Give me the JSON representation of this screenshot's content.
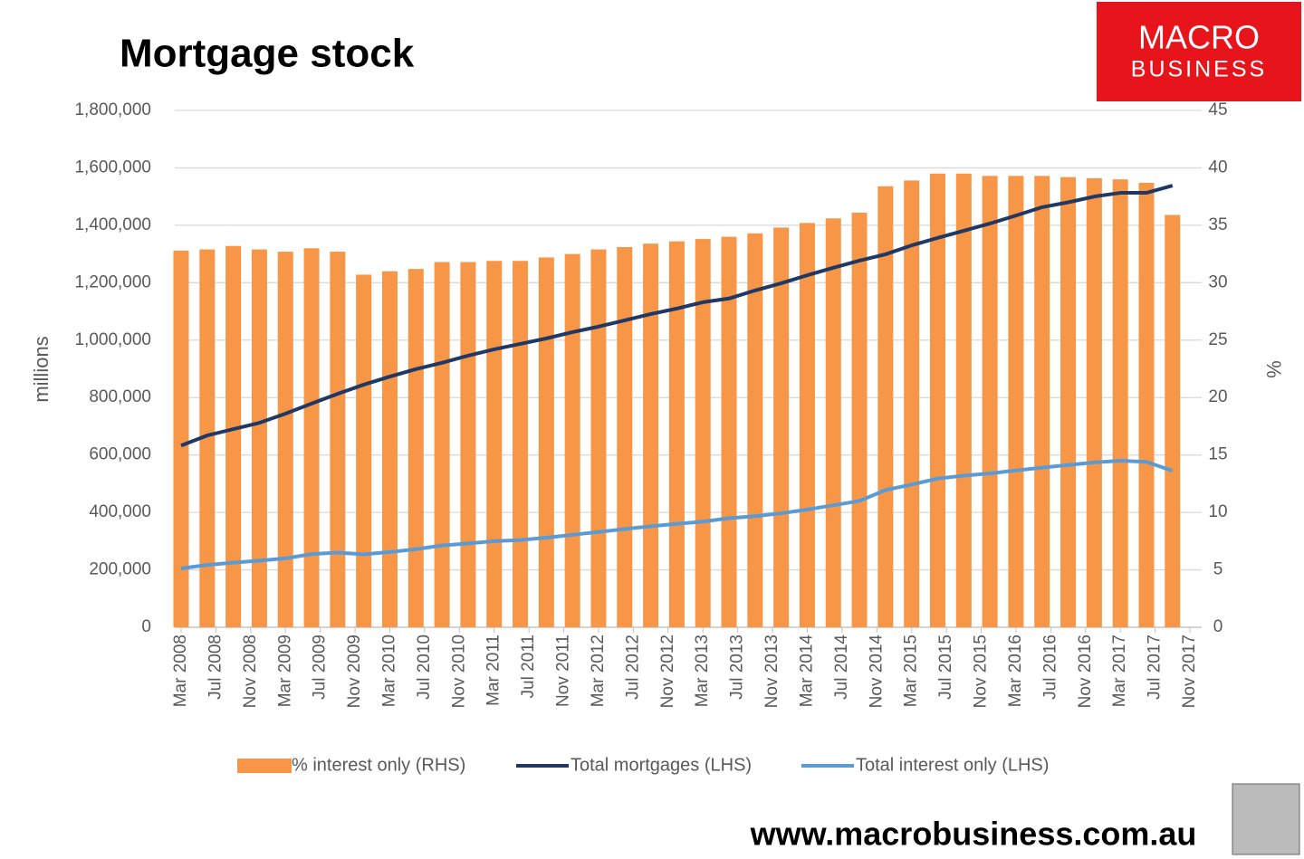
{
  "chart_data": {
    "type": "bar-line",
    "title": "Mortgage stock",
    "logo": [
      "MACRO",
      "BUSINESS"
    ],
    "footer": "www.macrobusiness.com.au",
    "y_label": "millions",
    "y2_label": "%",
    "x": [
      "2008-03",
      "2008-06",
      "2008-09",
      "2008-12",
      "2009-03",
      "2009-06",
      "2009-09",
      "2009-12",
      "2010-03",
      "2010-06",
      "2010-09",
      "2010-12",
      "2011-03",
      "2011-06",
      "2011-09",
      "2011-12",
      "2012-03",
      "2012-06",
      "2012-09",
      "2012-12",
      "2013-03",
      "2013-06",
      "2013-09",
      "2013-12",
      "2014-03",
      "2014-06",
      "2014-09",
      "2014-12",
      "2015-03",
      "2015-06",
      "2015-09",
      "2015-12",
      "2016-03",
      "2016-06",
      "2016-09",
      "2016-12",
      "2017-03",
      "2017-06",
      "2017-09"
    ],
    "xlim": [
      "2008-03",
      "2017-11"
    ],
    "xticks": [
      {
        "value": "2008-03",
        "label": "Mar 2008"
      },
      {
        "value": "2008-07",
        "label": "Jul 2008"
      },
      {
        "value": "2008-11",
        "label": "Nov 2008"
      },
      {
        "value": "2009-03",
        "label": "Mar 2009"
      },
      {
        "value": "2009-07",
        "label": "Jul 2009"
      },
      {
        "value": "2009-11",
        "label": "Nov 2009"
      },
      {
        "value": "2010-03",
        "label": "Mar 2010"
      },
      {
        "value": "2010-07",
        "label": "Jul 2010"
      },
      {
        "value": "2010-11",
        "label": "Nov 2010"
      },
      {
        "value": "2011-03",
        "label": "Mar 2011"
      },
      {
        "value": "2011-07",
        "label": "Jul 2011"
      },
      {
        "value": "2011-11",
        "label": "Nov 2011"
      },
      {
        "value": "2012-03",
        "label": "Mar 2012"
      },
      {
        "value": "2012-07",
        "label": "Jul 2012"
      },
      {
        "value": "2012-11",
        "label": "Nov 2012"
      },
      {
        "value": "2013-03",
        "label": "Mar 2013"
      },
      {
        "value": "2013-07",
        "label": "Jul 2013"
      },
      {
        "value": "2013-11",
        "label": "Nov 2013"
      },
      {
        "value": "2014-03",
        "label": "Mar 2014"
      },
      {
        "value": "2014-07",
        "label": "Jul 2014"
      },
      {
        "value": "2014-11",
        "label": "Nov 2014"
      },
      {
        "value": "2015-03",
        "label": "Mar 2015"
      },
      {
        "value": "2015-07",
        "label": "Jul 2015"
      },
      {
        "value": "2015-11",
        "label": "Nov 2015"
      },
      {
        "value": "2016-03",
        "label": "Mar 2016"
      },
      {
        "value": "2016-07",
        "label": "Jul 2016"
      },
      {
        "value": "2016-11",
        "label": "Nov 2016"
      },
      {
        "value": "2017-03",
        "label": "Mar 2017"
      },
      {
        "value": "2017-07",
        "label": "Jul 2017"
      },
      {
        "value": "2017-11",
        "label": "Nov 2017"
      }
    ],
    "ylim": [
      0,
      1800000
    ],
    "yticks": [
      0,
      {
        "value": 200000,
        "label": "200,000"
      },
      {
        "value": 400000,
        "label": "400,000"
      },
      {
        "value": 600000,
        "label": "600,000"
      },
      {
        "value": 800000,
        "label": "800,000"
      },
      {
        "value": 1000000,
        "label": "1,000,000"
      },
      {
        "value": 1200000,
        "label": "1,200,000"
      },
      {
        "value": 1400000,
        "label": "1,400,000"
      },
      {
        "value": 1600000,
        "label": "1,600,000"
      },
      {
        "value": 1800000,
        "label": "1,800,000"
      }
    ],
    "y2lim": [
      0,
      45
    ],
    "y2ticks": [
      0,
      5,
      10,
      15,
      20,
      25,
      30,
      35,
      40,
      45
    ],
    "grid": true,
    "series": [
      {
        "name": "% interest only (RHS)",
        "type": "bar",
        "axis": "y2",
        "color": "#f79646",
        "values": [
          32.8,
          32.9,
          33.2,
          32.9,
          32.7,
          33.0,
          32.7,
          30.7,
          31.0,
          31.2,
          31.8,
          31.8,
          31.9,
          31.9,
          32.2,
          32.5,
          32.9,
          33.1,
          33.4,
          33.6,
          33.8,
          34.0,
          34.3,
          34.8,
          35.2,
          35.6,
          36.1,
          38.4,
          38.9,
          39.5,
          39.5,
          39.3,
          39.3,
          39.3,
          39.2,
          39.1,
          39.0,
          38.7,
          35.9
        ]
      },
      {
        "name": "Total mortgages (LHS)",
        "type": "line",
        "color": "#1f3864",
        "values": [
          633000,
          668000,
          690000,
          712000,
          744000,
          779000,
          813000,
          845000,
          873000,
          899000,
          921000,
          946000,
          968000,
          987000,
          1006000,
          1028000,
          1047000,
          1069000,
          1091000,
          1110000,
          1132000,
          1145000,
          1173000,
          1198000,
          1226000,
          1252000,
          1277000,
          1299000,
          1330000,
          1356000,
          1381000,
          1406000,
          1434000,
          1463000,
          1480000,
          1500000,
          1513000,
          1513000,
          1538000
        ]
      },
      {
        "name": "Total interest only (LHS)",
        "type": "line",
        "color": "#5b9bd5",
        "values": [
          205000,
          217000,
          225000,
          232000,
          240000,
          255000,
          260000,
          254000,
          262000,
          272000,
          285000,
          292000,
          300000,
          304000,
          312000,
          322000,
          332000,
          342000,
          352000,
          360000,
          368000,
          380000,
          387000,
          397000,
          410000,
          425000,
          440000,
          478000,
          497000,
          518000,
          528000,
          536000,
          546000,
          556000,
          565000,
          574000,
          580000,
          576000,
          545000
        ]
      }
    ]
  }
}
